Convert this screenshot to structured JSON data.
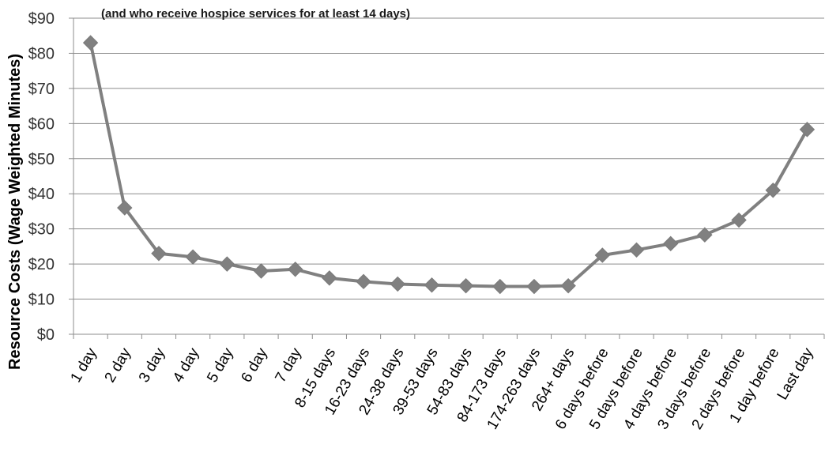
{
  "chart_data": {
    "type": "line",
    "title": "",
    "subtitle": "(and who receive hospice services for at least 14 days)",
    "xlabel": "",
    "ylabel": "Resource Costs (Wage Weighted Minutes)",
    "ylim": [
      0,
      90
    ],
    "yticks": [
      "$0",
      "$10",
      "$20",
      "$30",
      "$40",
      "$50",
      "$60",
      "$70",
      "$80",
      "$90"
    ],
    "grid": true,
    "legend": "none",
    "categories": [
      "1 day",
      "2 day",
      "3 day",
      "4 day",
      "5 day",
      "6 day",
      "7 day",
      "8-15 days",
      "16-23 days",
      "24-38 days",
      "39-53 days",
      "54-83 days",
      "84-173 days",
      "174-263 days",
      "264+ days",
      "6 days before",
      "5 days before",
      "4 days before",
      "3 days before",
      "2 days before",
      "1 day before",
      "Last day"
    ],
    "series": [
      {
        "values": [
          83,
          36,
          23,
          22,
          20,
          18,
          18.5,
          16,
          15,
          14.3,
          14,
          13.8,
          13.6,
          13.6,
          13.8,
          22.5,
          24,
          25.8,
          28.3,
          32.5,
          41,
          58.3
        ],
        "color": "#808080",
        "marker": "diamond"
      }
    ]
  }
}
